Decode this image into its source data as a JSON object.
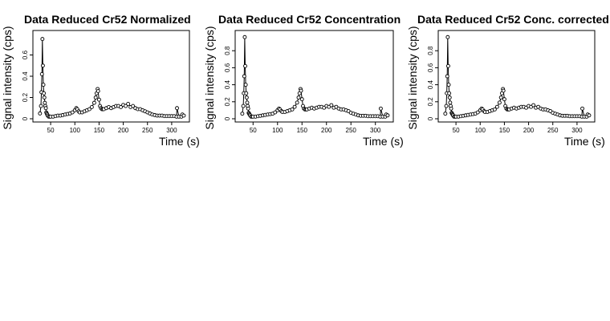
{
  "chart_data": [
    {
      "type": "scatter",
      "title": "Data Reduced Cr52 Normalized",
      "xlabel": "Time (s)",
      "ylabel": "Signal intensity (cps)",
      "xlim": [
        20,
        330
      ],
      "ylim": [
        0,
        0.8
      ],
      "xticks": [
        50,
        100,
        150,
        200,
        250,
        300
      ],
      "yticks": [
        0,
        0.2,
        0.4,
        0.6
      ],
      "grid": false,
      "legend": false,
      "x": [
        28,
        30,
        31,
        32,
        33,
        34,
        35,
        36,
        37,
        38,
        39,
        40,
        41,
        42,
        43,
        44,
        46,
        48,
        50,
        55,
        60,
        65,
        70,
        75,
        80,
        85,
        90,
        95,
        100,
        103,
        105,
        108,
        110,
        115,
        120,
        125,
        130,
        135,
        140,
        143,
        145,
        147,
        148,
        150,
        152,
        154,
        156,
        158,
        160,
        165,
        170,
        175,
        180,
        185,
        190,
        195,
        200,
        205,
        210,
        215,
        220,
        225,
        230,
        235,
        240,
        245,
        250,
        255,
        260,
        265,
        270,
        275,
        280,
        285,
        290,
        295,
        300,
        305,
        310,
        311,
        315,
        320,
        322,
        325
      ],
      "y": [
        0.05,
        0.12,
        0.25,
        0.42,
        0.75,
        0.5,
        0.32,
        0.24,
        0.2,
        0.15,
        0.12,
        0.1,
        0.06,
        0.05,
        0.04,
        0.03,
        0.02,
        0.02,
        0.02,
        0.02,
        0.025,
        0.03,
        0.03,
        0.035,
        0.04,
        0.045,
        0.05,
        0.06,
        0.08,
        0.1,
        0.09,
        0.07,
        0.06,
        0.06,
        0.07,
        0.08,
        0.09,
        0.11,
        0.15,
        0.2,
        0.24,
        0.28,
        0.26,
        0.18,
        0.12,
        0.1,
        0.09,
        0.09,
        0.09,
        0.1,
        0.11,
        0.1,
        0.11,
        0.12,
        0.12,
        0.11,
        0.13,
        0.12,
        0.14,
        0.11,
        0.12,
        0.1,
        0.09,
        0.09,
        0.08,
        0.07,
        0.06,
        0.05,
        0.04,
        0.035,
        0.03,
        0.03,
        0.03,
        0.025,
        0.025,
        0.025,
        0.025,
        0.025,
        0.02,
        0.1,
        0.02,
        0.02,
        0.04,
        0.03
      ]
    },
    {
      "type": "scatter",
      "title": "Data Reduced Cr52 Concentration",
      "xlabel": "Time (s)",
      "ylabel": "Signal intensity (cps)",
      "xlim": [
        20,
        330
      ],
      "ylim": [
        0,
        1.0
      ],
      "xticks": [
        50,
        100,
        150,
        200,
        250,
        300
      ],
      "yticks": [
        0,
        0.2,
        0.4,
        0.6,
        0.8
      ],
      "grid": false,
      "legend": false,
      "x": [
        28,
        30,
        31,
        32,
        33,
        34,
        35,
        36,
        37,
        38,
        39,
        40,
        41,
        42,
        43,
        44,
        46,
        48,
        50,
        55,
        60,
        65,
        70,
        75,
        80,
        85,
        90,
        95,
        100,
        103,
        105,
        108,
        110,
        115,
        120,
        125,
        130,
        135,
        140,
        143,
        145,
        147,
        148,
        150,
        152,
        154,
        156,
        158,
        160,
        165,
        170,
        175,
        180,
        185,
        190,
        195,
        200,
        205,
        210,
        215,
        220,
        225,
        230,
        235,
        240,
        245,
        250,
        255,
        260,
        265,
        270,
        275,
        280,
        285,
        290,
        295,
        300,
        305,
        310,
        311,
        315,
        320,
        322,
        325
      ],
      "y": [
        0.06,
        0.15,
        0.3,
        0.5,
        0.96,
        0.62,
        0.4,
        0.3,
        0.25,
        0.19,
        0.15,
        0.12,
        0.07,
        0.06,
        0.05,
        0.04,
        0.025,
        0.025,
        0.025,
        0.025,
        0.03,
        0.035,
        0.04,
        0.045,
        0.05,
        0.055,
        0.06,
        0.075,
        0.1,
        0.12,
        0.11,
        0.09,
        0.08,
        0.08,
        0.09,
        0.1,
        0.11,
        0.14,
        0.19,
        0.25,
        0.3,
        0.35,
        0.33,
        0.23,
        0.15,
        0.12,
        0.11,
        0.11,
        0.11,
        0.12,
        0.13,
        0.12,
        0.13,
        0.14,
        0.14,
        0.13,
        0.15,
        0.14,
        0.16,
        0.13,
        0.14,
        0.12,
        0.11,
        0.11,
        0.1,
        0.09,
        0.07,
        0.06,
        0.05,
        0.04,
        0.035,
        0.035,
        0.035,
        0.03,
        0.03,
        0.03,
        0.03,
        0.03,
        0.025,
        0.12,
        0.025,
        0.025,
        0.05,
        0.04
      ]
    },
    {
      "type": "scatter",
      "title": "Data Reduced Cr52 Conc. corrected",
      "xlabel": "Time (s)",
      "ylabel": "Signal intensity (cps)",
      "xlim": [
        20,
        330
      ],
      "ylim": [
        0,
        1.0
      ],
      "xticks": [
        50,
        100,
        150,
        200,
        250,
        300
      ],
      "yticks": [
        0,
        0.2,
        0.4,
        0.6,
        0.8
      ],
      "grid": false,
      "legend": false,
      "x": [
        28,
        30,
        31,
        32,
        33,
        34,
        35,
        36,
        37,
        38,
        39,
        40,
        41,
        42,
        43,
        44,
        46,
        48,
        50,
        55,
        60,
        65,
        70,
        75,
        80,
        85,
        90,
        95,
        100,
        103,
        105,
        108,
        110,
        115,
        120,
        125,
        130,
        135,
        140,
        143,
        145,
        147,
        148,
        150,
        152,
        154,
        156,
        158,
        160,
        165,
        170,
        175,
        180,
        185,
        190,
        195,
        200,
        205,
        210,
        215,
        220,
        225,
        230,
        235,
        240,
        245,
        250,
        255,
        260,
        265,
        270,
        275,
        280,
        285,
        290,
        295,
        300,
        305,
        310,
        311,
        315,
        320,
        322,
        325
      ],
      "y": [
        0.06,
        0.15,
        0.3,
        0.5,
        0.96,
        0.62,
        0.4,
        0.3,
        0.25,
        0.19,
        0.15,
        0.12,
        0.07,
        0.06,
        0.05,
        0.04,
        0.025,
        0.025,
        0.025,
        0.025,
        0.03,
        0.035,
        0.04,
        0.045,
        0.05,
        0.055,
        0.06,
        0.075,
        0.1,
        0.12,
        0.11,
        0.09,
        0.08,
        0.08,
        0.09,
        0.1,
        0.11,
        0.14,
        0.19,
        0.25,
        0.3,
        0.35,
        0.33,
        0.23,
        0.15,
        0.12,
        0.11,
        0.11,
        0.11,
        0.12,
        0.13,
        0.12,
        0.13,
        0.14,
        0.14,
        0.13,
        0.15,
        0.14,
        0.16,
        0.13,
        0.14,
        0.12,
        0.11,
        0.11,
        0.1,
        0.09,
        0.07,
        0.06,
        0.05,
        0.04,
        0.035,
        0.035,
        0.035,
        0.03,
        0.03,
        0.03,
        0.03,
        0.03,
        0.025,
        0.12,
        0.025,
        0.025,
        0.05,
        0.04
      ]
    }
  ]
}
